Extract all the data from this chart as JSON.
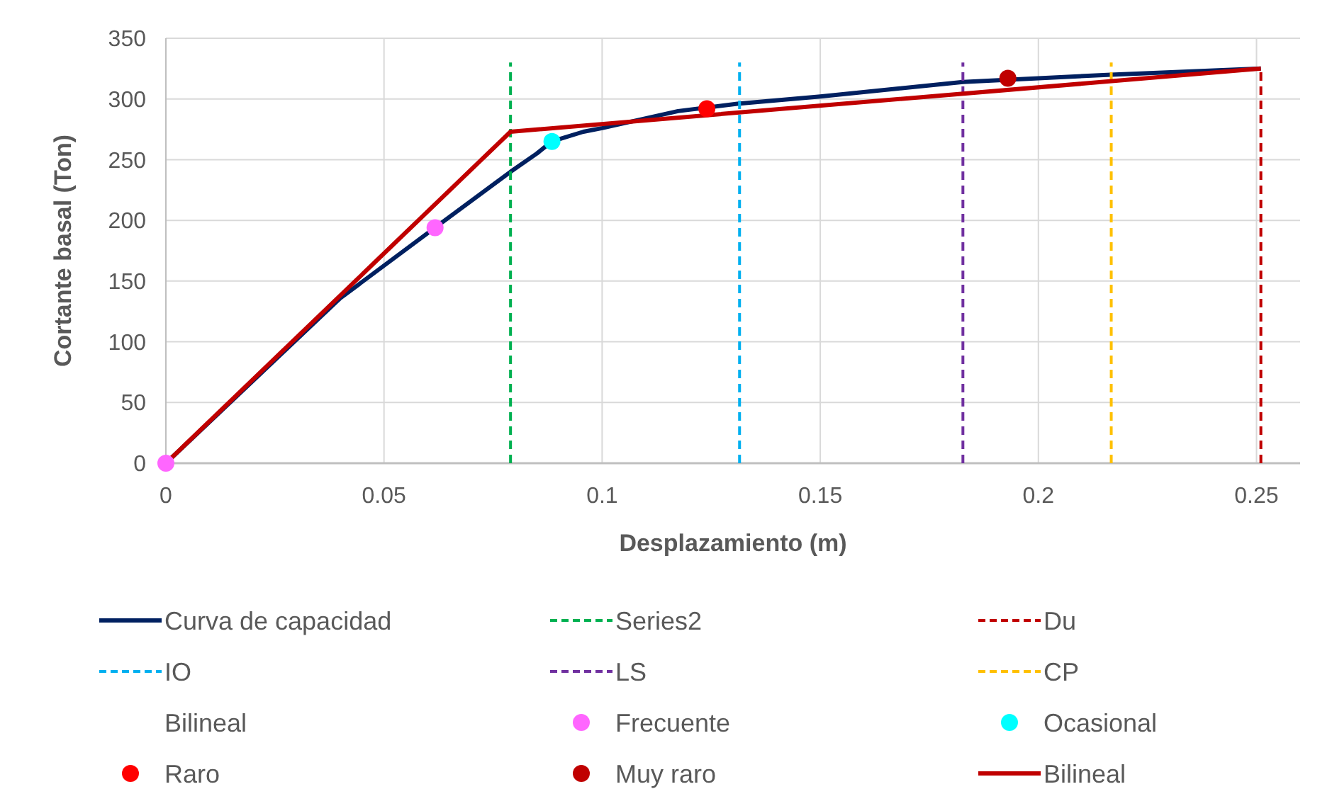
{
  "chart_data": {
    "type": "line",
    "xlabel": "Desplazamiento (m)",
    "ylabel": "Cortante basal (Ton)",
    "xlim": [
      0,
      0.26
    ],
    "ylim": [
      0,
      350
    ],
    "xticks": [
      0,
      0.05,
      0.1,
      0.15,
      0.2,
      0.25
    ],
    "yticks": [
      0,
      50,
      100,
      150,
      200,
      250,
      300,
      350
    ],
    "grid": true,
    "legend": "bottom",
    "series": [
      {
        "name": "Curva de capacidad",
        "color": "#002060",
        "line_style": "solid",
        "x": [
          0,
          0.04,
          0.0617,
          0.079,
          0.085,
          0.0885,
          0.0957,
          0.1,
          0.1174,
          0.131,
          0.15,
          0.1827,
          0.2166,
          0.251
        ],
        "values": [
          0,
          136,
          194,
          240,
          255,
          265,
          273,
          276,
          290,
          296,
          302,
          314,
          320,
          325
        ]
      },
      {
        "name": "Series2",
        "color": "#00b050",
        "line_style": "dashed",
        "x": [
          0.079,
          0.079
        ],
        "values": [
          0,
          330
        ]
      },
      {
        "name": "Du",
        "color": "#c00000",
        "line_style": "dashed",
        "x": [
          0.251,
          0.251
        ],
        "values": [
          0,
          325
        ]
      },
      {
        "name": "IO",
        "color": "#00b0f0",
        "line_style": "dashed",
        "x": [
          0.1315,
          0.1315
        ],
        "values": [
          0,
          330
        ]
      },
      {
        "name": "LS",
        "color": "#7030a0",
        "line_style": "dashed",
        "x": [
          0.1827,
          0.1827
        ],
        "values": [
          0,
          330
        ]
      },
      {
        "name": "CP",
        "color": "#ffc000",
        "line_style": "dashed",
        "x": [
          0.2167,
          0.2167
        ],
        "values": [
          0,
          330
        ]
      },
      {
        "name": "Bilineal"
      },
      {
        "name": "Frecuente",
        "type": "scatter",
        "color": "#ff66ff",
        "marker": "circle",
        "x": [
          0,
          0.0617
        ],
        "values": [
          0,
          194
        ]
      },
      {
        "name": "Ocasional",
        "type": "scatter",
        "color": "#00ffff",
        "marker": "circle",
        "x": [
          0.0885
        ],
        "values": [
          265
        ]
      },
      {
        "name": "Raro",
        "type": "scatter",
        "color": "#ff0000",
        "marker": "circle",
        "x": [
          0.124
        ],
        "values": [
          292
        ]
      },
      {
        "name": "Muy raro",
        "type": "scatter",
        "color": "#c00000",
        "marker": "circle",
        "x": [
          0.193
        ],
        "values": [
          317
        ]
      },
      {
        "name": "Bilineal",
        "color": "#c00000",
        "line_style": "solid",
        "x": [
          0,
          0.079,
          0.251
        ],
        "values": [
          0,
          273,
          325
        ]
      }
    ]
  }
}
